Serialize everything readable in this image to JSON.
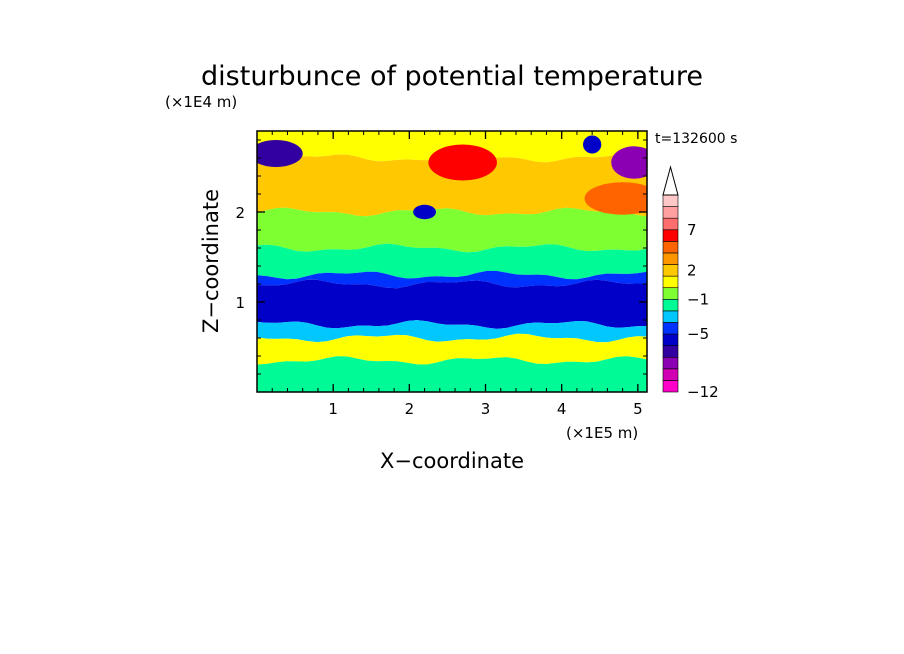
{
  "chart_data": {
    "type": "heatmap",
    "title": "disturbunce of potential temperature",
    "time_label": "t=132600 s",
    "xlabel": "X−coordinate",
    "ylabel": "Z−coordinate",
    "x_unit_label": "(×1E5 m)",
    "y_unit_label": "(×1E4 m)",
    "xlim": [
      0,
      5.12
    ],
    "ylim": [
      0,
      2.9
    ],
    "x_ticks": [
      1,
      2,
      3,
      4,
      5
    ],
    "x_tick_labels": [
      "1",
      "2",
      "3",
      "4",
      "5"
    ],
    "y_ticks": [
      1,
      2
    ],
    "y_tick_labels": [
      "1",
      "2"
    ],
    "colorbar": {
      "extend": "max",
      "colors": [
        "#ff00c8",
        "#d200b4",
        "#8c00b4",
        "#3200a0",
        "#0000c8",
        "#0032ff",
        "#00c8ff",
        "#00fa96",
        "#7dff32",
        "#ffff00",
        "#ffc800",
        "#ff9600",
        "#ff6400",
        "#ff0000",
        "#ff6e6e",
        "#ffa0a0",
        "#ffc8c8"
      ],
      "tick_values": [
        -12,
        -5,
        -1,
        2,
        7
      ],
      "tick_labels": [
        "−12",
        "−5",
        "−1",
        "2",
        "7"
      ]
    },
    "bands": [
      {
        "z_bottom": 2.6,
        "z_top": 2.9,
        "level": 9,
        "notes": "top yellow layer"
      },
      {
        "z_bottom": 2.0,
        "z_top": 2.6,
        "level": 10,
        "notes": "upper orange/yellow layer"
      },
      {
        "z_bottom": 1.6,
        "z_top": 2.0,
        "level": 8,
        "notes": "green/yellow transition"
      },
      {
        "z_bottom": 1.3,
        "z_top": 1.6,
        "level": 7,
        "notes": "green layer"
      },
      {
        "z_bottom": 1.2,
        "z_top": 1.3,
        "level": 5,
        "notes": "light blue"
      },
      {
        "z_bottom": 0.75,
        "z_top": 1.2,
        "level": 4,
        "notes": "deep blue core"
      },
      {
        "z_bottom": 0.6,
        "z_top": 0.75,
        "level": 6,
        "notes": "cyan"
      },
      {
        "z_bottom": 0.35,
        "z_top": 0.6,
        "level": 9,
        "notes": "yellow lenses"
      },
      {
        "z_bottom": 0.0,
        "z_top": 0.35,
        "level": 7,
        "notes": "green base"
      }
    ],
    "features": [
      {
        "x": 0.25,
        "z": 2.65,
        "level": 3,
        "rx": 0.35,
        "rz": 0.15
      },
      {
        "x": 4.95,
        "z": 2.55,
        "level": 2,
        "rx": 0.3,
        "rz": 0.18
      },
      {
        "x": 2.7,
        "z": 2.55,
        "level": 13,
        "rx": 0.45,
        "rz": 0.2
      },
      {
        "x": 2.2,
        "z": 2.0,
        "level": 4,
        "rx": 0.15,
        "rz": 0.08
      },
      {
        "x": 4.4,
        "z": 2.75,
        "level": 4,
        "rx": 0.12,
        "rz": 0.1
      },
      {
        "x": 4.8,
        "z": 2.15,
        "level": 12,
        "rx": 0.5,
        "rz": 0.18
      }
    ]
  }
}
